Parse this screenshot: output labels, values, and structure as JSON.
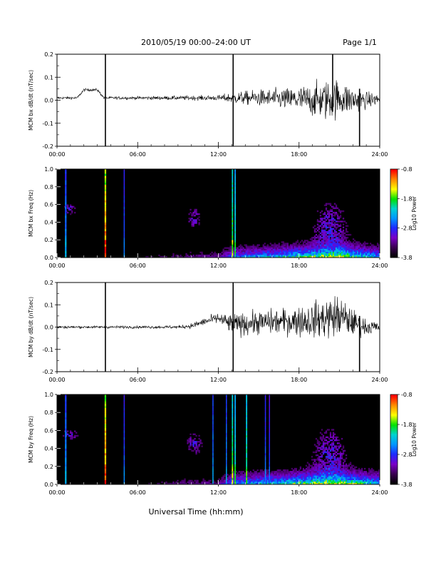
{
  "header": {
    "title": "2010/05/19  00:00–24:00 UT",
    "page": "Page 1/1"
  },
  "footer": {
    "xlabel": "Universal Time (hh:mm)"
  },
  "colors": {
    "colormap": [
      "#000000",
      "#3a0050",
      "#7a00c8",
      "#1e28ff",
      "#0096ff",
      "#00d2d2",
      "#00e100",
      "#ffff00",
      "#ff8c00",
      "#ff0000"
    ]
  },
  "chart_data": [
    {
      "type": "line",
      "ylabel": "MCM bx dB/dt (nT/sec)",
      "xlim": [
        0,
        24
      ],
      "ylim": [
        -0.2,
        0.2
      ],
      "xticks": [
        "00:00",
        "06:00",
        "12:00",
        "18:00",
        "24:00"
      ],
      "yticks": [
        "0.2",
        "0.1",
        "0.0",
        "-0.1",
        "-0.2"
      ],
      "envelope": {
        "hours": [
          0,
          1.5,
          2,
          3,
          3.5,
          6,
          9,
          12,
          13,
          15,
          17,
          19,
          20,
          21,
          22,
          23,
          24
        ],
        "mean": [
          0.01,
          0.01,
          0.045,
          0.045,
          0.01,
          0.01,
          0.01,
          0.01,
          0.01,
          0.01,
          0.005,
          0.0,
          0.0,
          0.01,
          0.0,
          0.0,
          0.005
        ],
        "amp": [
          0.01,
          0.01,
          0.01,
          0.01,
          0.01,
          0.012,
          0.015,
          0.02,
          0.04,
          0.06,
          0.08,
          0.12,
          0.15,
          0.14,
          0.1,
          0.06,
          0.04
        ]
      },
      "spikes": [
        {
          "x": 3.6,
          "ymin": -0.2,
          "ymax": 0.2
        },
        {
          "x": 13.1,
          "ymin": -0.2,
          "ymax": 0.2
        },
        {
          "x": 20.5,
          "ymin": -0.05,
          "ymax": 0.2
        },
        {
          "x": 22.5,
          "ymin": -0.2,
          "ymax": 0.05
        }
      ]
    },
    {
      "type": "heatmap",
      "ylabel": "MCM bx Freq (Hz)",
      "xlim": [
        0,
        24
      ],
      "ylim": [
        0.0,
        1.0
      ],
      "xticks": [
        "00:00",
        "06:00",
        "12:00",
        "18:00",
        "24:00"
      ],
      "yticks": [
        "1.0",
        "0.8",
        "0.6",
        "0.4",
        "0.2",
        "0.0"
      ],
      "colorbar": {
        "label": "Log10 Power",
        "ticks": [
          "-0.8",
          "-1.8",
          "-2.8",
          "-3.8"
        ],
        "range": [
          -3.8,
          -0.8
        ]
      },
      "activity": {
        "hours": [
          0,
          6,
          10,
          12,
          13,
          15,
          17,
          19,
          21,
          22,
          24
        ],
        "level": [
          0.1,
          0.1,
          0.2,
          0.2,
          0.45,
          0.55,
          0.65,
          0.8,
          0.95,
          0.75,
          0.55
        ]
      },
      "blobs": [
        {
          "x": 10.2,
          "f": 0.45,
          "w": 0.5,
          "h": 0.12
        },
        {
          "x": 1.0,
          "f": 0.55,
          "w": 0.5,
          "h": 0.06
        },
        {
          "x": 20.3,
          "f": 0.35,
          "w": 1.2,
          "h": 0.3
        }
      ],
      "lines": [
        {
          "x": 0.65,
          "level": 0.45,
          "w": 0.12
        },
        {
          "x": 3.6,
          "level": 0.95,
          "w": 0.12
        },
        {
          "x": 5.0,
          "level": 0.4,
          "w": 0.08
        },
        {
          "x": 13.05,
          "level": 0.7,
          "w": 0.1
        },
        {
          "x": 13.25,
          "level": 0.6,
          "w": 0.1
        }
      ]
    },
    {
      "type": "line",
      "ylabel": "MCM by dB/dt (nT/sec)",
      "xlim": [
        0,
        24
      ],
      "ylim": [
        -0.2,
        0.2
      ],
      "xticks": [
        "00:00",
        "06:00",
        "12:00",
        "18:00",
        "24:00"
      ],
      "yticks": [
        "0.2",
        "0.1",
        "0.0",
        "-0.1",
        "-0.2"
      ],
      "envelope": {
        "hours": [
          0,
          3,
          6,
          9,
          10,
          11,
          12,
          13,
          15,
          17,
          19,
          20,
          21,
          22,
          23,
          24
        ],
        "mean": [
          0.0,
          0.0,
          0.0,
          0.0,
          0.005,
          0.025,
          0.04,
          0.01,
          0.02,
          0.025,
          0.03,
          0.04,
          0.05,
          0.02,
          0.0,
          0.0
        ],
        "amp": [
          0.01,
          0.01,
          0.01,
          0.012,
          0.02,
          0.03,
          0.04,
          0.08,
          0.09,
          0.1,
          0.13,
          0.16,
          0.16,
          0.1,
          0.06,
          0.04
        ]
      },
      "spikes": [
        {
          "x": 3.6,
          "ymin": -0.2,
          "ymax": 0.2
        },
        {
          "x": 13.1,
          "ymin": -0.2,
          "ymax": 0.2
        },
        {
          "x": 22.5,
          "ymin": -0.2,
          "ymax": 0.05
        }
      ]
    },
    {
      "type": "heatmap",
      "ylabel": "MCM by Freq (Hz)",
      "xlim": [
        0,
        24
      ],
      "ylim": [
        0.0,
        1.0
      ],
      "xticks": [
        "00:00",
        "06:00",
        "12:00",
        "18:00",
        "24:00"
      ],
      "yticks": [
        "1.0",
        "0.8",
        "0.6",
        "0.4",
        "0.2",
        "0.0"
      ],
      "colorbar": {
        "label": "Log10 Power",
        "ticks": [
          "-0.8",
          "-1.8",
          "-2.8",
          "-3.8"
        ],
        "range": [
          -3.8,
          -0.8
        ]
      },
      "activity": {
        "hours": [
          0,
          6,
          10,
          12,
          13,
          15,
          17,
          19,
          21,
          22,
          24
        ],
        "level": [
          0.1,
          0.1,
          0.2,
          0.2,
          0.5,
          0.6,
          0.7,
          0.85,
          0.95,
          0.8,
          0.6
        ]
      },
      "blobs": [
        {
          "x": 10.2,
          "f": 0.45,
          "w": 0.6,
          "h": 0.12
        },
        {
          "x": 1.0,
          "f": 0.55,
          "w": 0.6,
          "h": 0.06
        },
        {
          "x": 20.3,
          "f": 0.35,
          "w": 1.2,
          "h": 0.3
        }
      ],
      "lines": [
        {
          "x": 0.65,
          "level": 0.45,
          "w": 0.12
        },
        {
          "x": 3.6,
          "level": 0.95,
          "w": 0.12
        },
        {
          "x": 5.0,
          "level": 0.4,
          "w": 0.08
        },
        {
          "x": 11.6,
          "level": 0.45,
          "w": 0.08
        },
        {
          "x": 12.6,
          "level": 0.45,
          "w": 0.08
        },
        {
          "x": 13.05,
          "level": 0.7,
          "w": 0.1
        },
        {
          "x": 13.25,
          "level": 0.6,
          "w": 0.1
        },
        {
          "x": 14.1,
          "level": 0.65,
          "w": 0.1
        },
        {
          "x": 15.5,
          "level": 0.4,
          "w": 0.08
        },
        {
          "x": 15.8,
          "level": 0.35,
          "w": 0.08
        }
      ]
    }
  ]
}
